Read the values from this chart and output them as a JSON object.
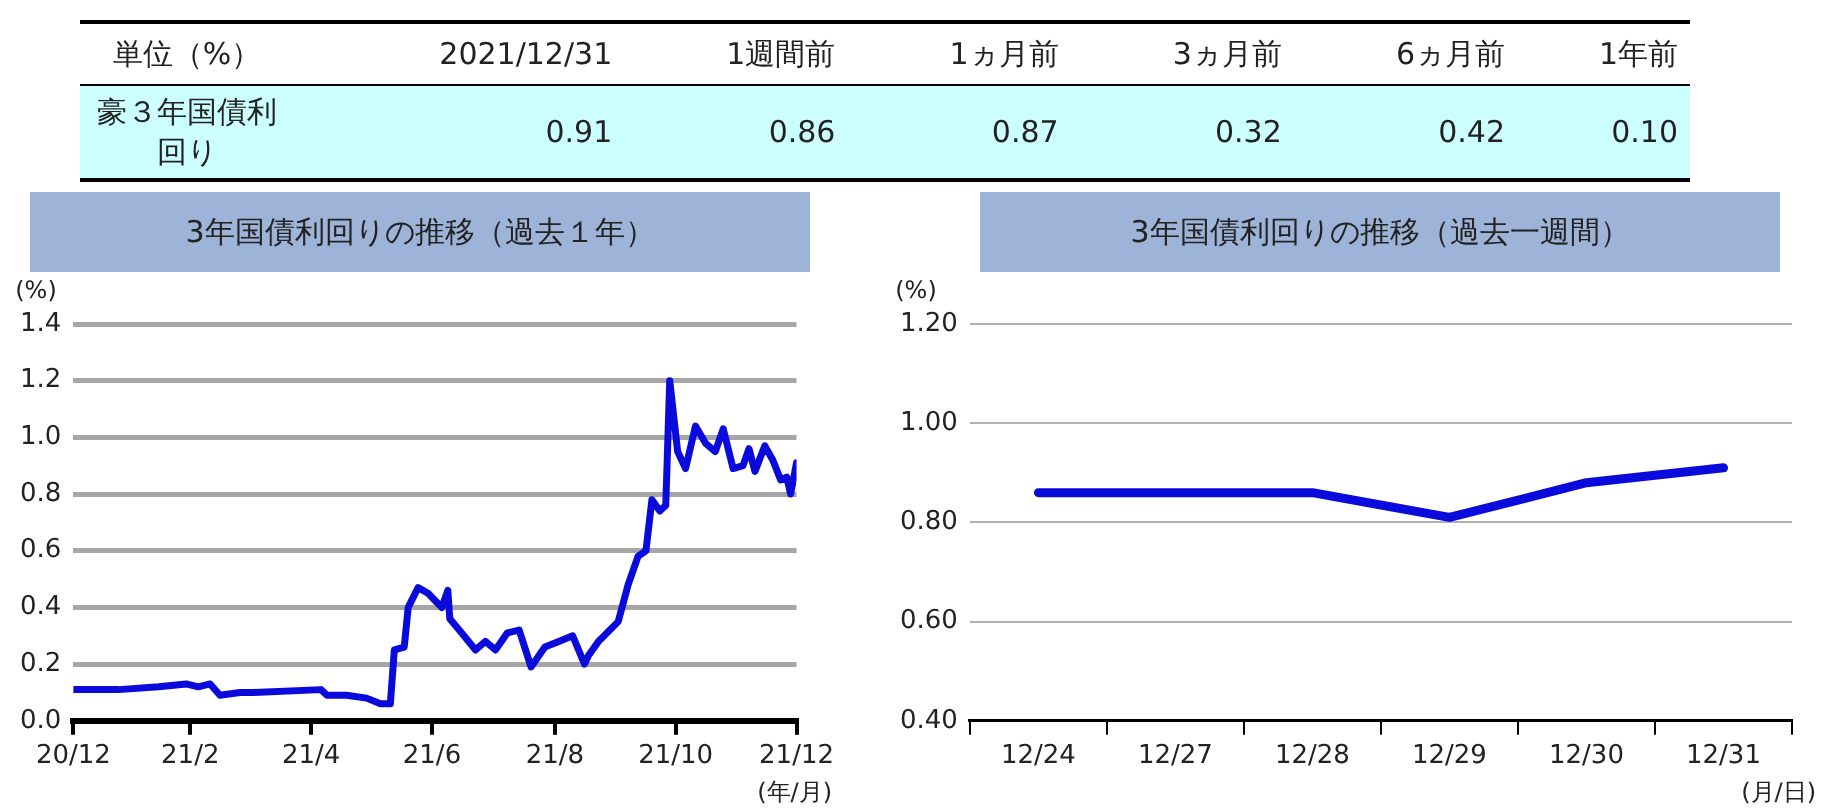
{
  "chart_data": [
    {
      "type": "other",
      "categories": [
        "単位（%）",
        "2021/12/31",
        "1週間前",
        "1ヵ月前",
        "3ヵ月前",
        "6ヵ月前",
        "1年前"
      ],
      "annotations": [
        "豪３年国債利回り",
        "0.91",
        "0.86",
        "0.87",
        "0.32",
        "0.42",
        "0.10"
      ]
    },
    {
      "type": "line",
      "title": "3年国債利回りの推移（過去１年）",
      "ylabel": "(%)",
      "xlabel": "(年/月)",
      "grid": "y",
      "legend": false,
      "marker": "none",
      "x": [
        "2020-12-31",
        "2021-01-23",
        "2021-02-12",
        "2021-02-26",
        "2021-03-04",
        "2021-03-10",
        "2021-03-15",
        "2021-03-25",
        "2021-04-01",
        "2021-05-05",
        "2021-05-08",
        "2021-05-18",
        "2021-05-28",
        "2021-06-04",
        "2021-06-09",
        "2021-06-11",
        "2021-06-16",
        "2021-06-18",
        "2021-06-23",
        "2021-06-28",
        "2021-07-05",
        "2021-07-08",
        "2021-07-09",
        "2021-07-15",
        "2021-07-22",
        "2021-07-27",
        "2021-08-01",
        "2021-08-07",
        "2021-08-13",
        "2021-08-19",
        "2021-08-26",
        "2021-09-02",
        "2021-09-09",
        "2021-09-15",
        "2021-09-17",
        "2021-09-22",
        "2021-10-02",
        "2021-10-07",
        "2021-10-12",
        "2021-10-16",
        "2021-10-19",
        "2021-10-23",
        "2021-10-26",
        "2021-10-28",
        "2021-11-01",
        "2021-11-05",
        "2021-11-10",
        "2021-11-15",
        "2021-11-20",
        "2021-11-24",
        "2021-11-29",
        "2021-12-04",
        "2021-12-07",
        "2021-12-10",
        "2021-12-15",
        "2021-12-19",
        "2021-12-23",
        "2021-12-26",
        "2021-12-28",
        "2021-12-31"
      ],
      "series": [
        {
          "color": "#0a0adc",
          "values": [
            0.11,
            0.11,
            0.12,
            0.13,
            0.12,
            0.13,
            0.09,
            0.1,
            0.1,
            0.11,
            0.09,
            0.09,
            0.08,
            0.06,
            0.06,
            0.25,
            0.26,
            0.4,
            0.47,
            0.45,
            0.4,
            0.46,
            0.36,
            0.31,
            0.25,
            0.28,
            0.25,
            0.31,
            0.32,
            0.19,
            0.26,
            0.28,
            0.3,
            0.2,
            0.23,
            0.28,
            0.35,
            0.48,
            0.58,
            0.6,
            0.78,
            0.74,
            0.76,
            1.2,
            0.95,
            0.89,
            1.04,
            0.98,
            0.95,
            1.03,
            0.89,
            0.9,
            0.96,
            0.88,
            0.97,
            0.92,
            0.85,
            0.86,
            0.8,
            0.91
          ]
        }
      ],
      "xlim": [
        "2020-12-31",
        "2021-12-31"
      ],
      "xticks": [
        {
          "value": "2020-12-31",
          "label": "20/12"
        },
        {
          "value": "2021-02-28",
          "label": "21/2"
        },
        {
          "value": "2021-04-30",
          "label": "21/4"
        },
        {
          "value": "2021-06-30",
          "label": "21/6"
        },
        {
          "value": "2021-08-31",
          "label": "21/8"
        },
        {
          "value": "2021-10-31",
          "label": "21/10"
        },
        {
          "value": "2021-12-31",
          "label": "21/12"
        }
      ],
      "ylim": [
        0,
        1.4
      ],
      "yticks": [
        {
          "value": 0,
          "label": "0.0"
        },
        0.2,
        0.4,
        0.6,
        0.8,
        {
          "value": 1,
          "label": "1.0"
        },
        1.2,
        1.4
      ]
    },
    {
      "type": "line",
      "title": "3年国債利回りの推移（過去一週間）",
      "ylabel": "(%)",
      "xlabel": "(月/日)",
      "grid": "y",
      "legend": false,
      "marker": "none",
      "categories": [
        "12/24",
        "12/27",
        "12/28",
        "12/29",
        "12/30",
        "12/31"
      ],
      "series": [
        {
          "color": "#0a0adc",
          "values": [
            0.86,
            0.86,
            0.86,
            0.81,
            0.88,
            0.91
          ]
        }
      ],
      "ylim": [
        0.4,
        1.2
      ],
      "yticks": [
        {
          "value": 0.4,
          "label": "0.40"
        },
        {
          "value": 0.6,
          "label": "0.60"
        },
        {
          "value": 0.8,
          "label": "0.80"
        },
        {
          "value": 1,
          "label": "1.00"
        },
        {
          "value": 1.2,
          "label": "1.20"
        }
      ]
    }
  ]
}
